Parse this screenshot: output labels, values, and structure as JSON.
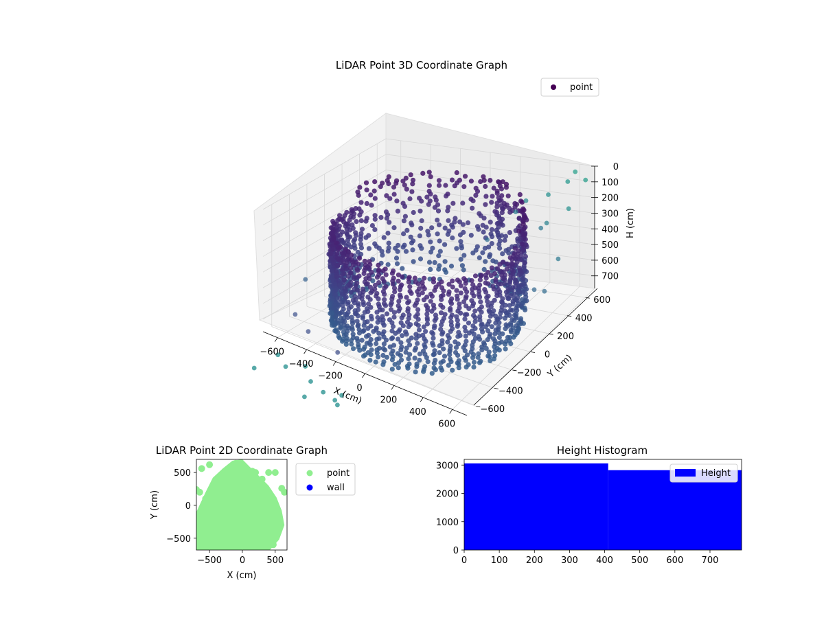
{
  "figure": {
    "colors": {
      "viridis_dark": "#440154",
      "viridis_mid": "#3b528b",
      "viridis_teal": "#21918c",
      "viridis_light": "#5ec962",
      "green": "#90ee90",
      "blue": "#0000ff"
    }
  },
  "chart_data": [
    {
      "type": "scatter",
      "projection": "3d",
      "title": "LiDAR Point 3D Coordinate Graph",
      "xlabel": "X (cm)",
      "ylabel": "Y (cm)",
      "zlabel": "H (cm)",
      "xticks": [
        "−600",
        "−400",
        "−200",
        "0",
        "200",
        "400",
        "600"
      ],
      "yticks": [
        "−600",
        "−400",
        "−200",
        "0",
        "200",
        "400",
        "600"
      ],
      "zticks": [
        "0",
        "100",
        "200",
        "300",
        "400",
        "500",
        "600",
        "700"
      ],
      "xlim": [
        -700,
        700
      ],
      "ylim": [
        -700,
        700
      ],
      "zlim": [
        0,
        780
      ],
      "z_inverted": true,
      "colormap": "viridis",
      "legend": [
        {
          "label": "point",
          "color": "#440154"
        }
      ],
      "legend_position": "top-right",
      "grid": true,
      "series": [
        {
          "name": "point",
          "description_structure": "cylindrical wall of points radius ~560 cm, H 0-780 cm, plus scattered outliers"
        }
      ],
      "outliers": [
        {
          "x": 600,
          "y": 650,
          "h": 20
        },
        {
          "x": 700,
          "y": 600,
          "h": 30
        },
        {
          "x": 660,
          "y": 480,
          "h": 150
        },
        {
          "x": 450,
          "y": 600,
          "h": 160
        },
        {
          "x": 300,
          "y": 600,
          "h": 220
        },
        {
          "x": 500,
          "y": 500,
          "h": 280
        },
        {
          "x": 700,
          "y": 300,
          "h": 360
        },
        {
          "x": 700,
          "y": 150,
          "h": 480
        },
        {
          "x": 650,
          "y": -50,
          "h": 620
        },
        {
          "x": 400,
          "y": 600,
          "h": 380
        },
        {
          "x": 200,
          "y": 650,
          "h": 330
        },
        {
          "x": 600,
          "y": 200,
          "h": 520
        },
        {
          "x": -600,
          "y": -500,
          "h": 700
        },
        {
          "x": -450,
          "y": -600,
          "h": 720
        },
        {
          "x": -200,
          "y": -680,
          "h": 730
        },
        {
          "x": -650,
          "y": -300,
          "h": 560
        },
        {
          "x": 550,
          "y": 650,
          "h": 90
        },
        {
          "x": 100,
          "y": 500,
          "h": 450
        }
      ]
    },
    {
      "type": "scatter",
      "title": "LiDAR Point 2D Coordinate Graph",
      "xlabel": "X (cm)",
      "ylabel": "Y (cm)",
      "xticks": [
        "−500",
        "0",
        "500"
      ],
      "yticks": [
        "500",
        "0",
        "−500"
      ],
      "xlim": [
        -700,
        680
      ],
      "ylim": [
        -680,
        700
      ],
      "legend": [
        {
          "label": "point",
          "color": "#90ee90"
        },
        {
          "label": "wall",
          "color": "#0000ff"
        }
      ],
      "legend_position": "outside-right"
    },
    {
      "type": "bar",
      "title": "Height Histogram",
      "xlabel": "",
      "ylabel": "",
      "xticks": [
        "0",
        "100",
        "200",
        "300",
        "400",
        "500",
        "600",
        "700"
      ],
      "yticks": [
        "0",
        "1000",
        "2000",
        "3000"
      ],
      "xlim": [
        0,
        790
      ],
      "ylim": [
        0,
        3200
      ],
      "bins": [
        {
          "x0": 0,
          "x1": 410,
          "value": 3060
        },
        {
          "x0": 410,
          "x1": 790,
          "value": 2820
        }
      ],
      "legend": [
        {
          "label": "Height",
          "color": "#0000ff"
        }
      ],
      "legend_position": "top-right"
    }
  ]
}
